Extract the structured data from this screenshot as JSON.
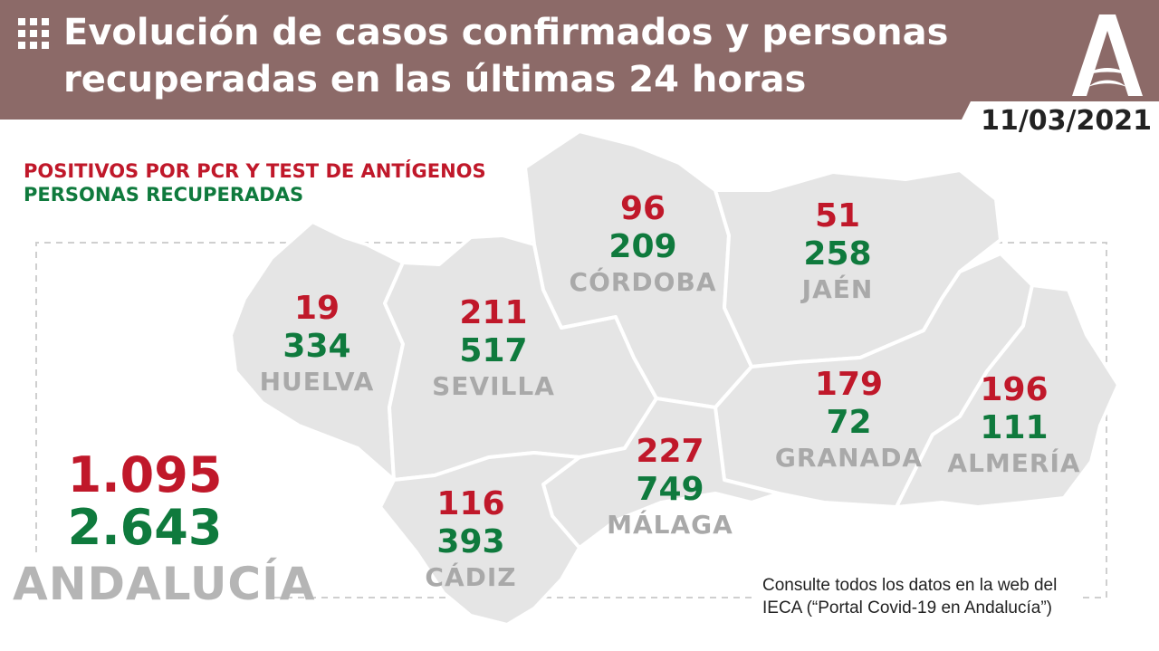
{
  "header": {
    "title_line1": "Evolución de casos confirmados y personas",
    "title_line2": "recuperadas en las últimas 24 horas",
    "date": "11/03/2021",
    "color": "#8c6a68"
  },
  "legend": {
    "positives_label": "POSITIVOS POR PCR Y TEST DE ANTÍGENOS",
    "recovered_label": "PERSONAS RECUPERADAS",
    "positives_color": "#c0182a",
    "recovered_color": "#0f7a3d"
  },
  "provinces": [
    {
      "name": "HUELVA",
      "positives": "19",
      "recovered": "334"
    },
    {
      "name": "SEVILLA",
      "positives": "211",
      "recovered": "517"
    },
    {
      "name": "CÓRDOBA",
      "positives": "96",
      "recovered": "209"
    },
    {
      "name": "JAÉN",
      "positives": "51",
      "recovered": "258"
    },
    {
      "name": "GRANADA",
      "positives": "179",
      "recovered": "72"
    },
    {
      "name": "ALMERÍA",
      "positives": "196",
      "recovered": "111"
    },
    {
      "name": "MÁLAGA",
      "positives": "227",
      "recovered": "749"
    },
    {
      "name": "CÁDIZ",
      "positives": "116",
      "recovered": "393"
    }
  ],
  "total": {
    "region": "ANDALUCÍA",
    "positives": "1.095",
    "recovered": "2.643"
  },
  "footer": {
    "note_line1": "Consulte todos los datos en la web del",
    "note_line2": "IECA (“Portal Covid-19 en Andalucía”)"
  },
  "icons": [
    "grid-icon",
    "junta-andalucia-logo"
  ]
}
